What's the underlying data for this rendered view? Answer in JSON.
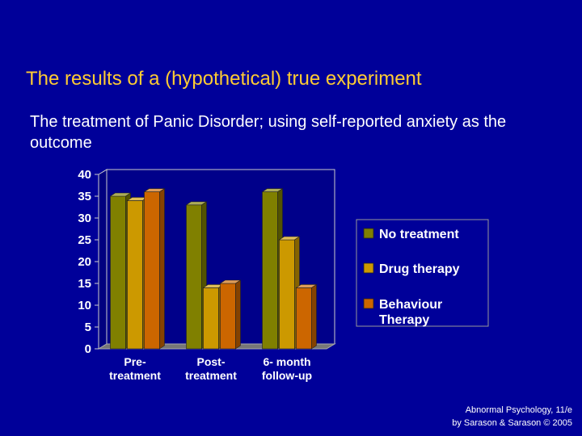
{
  "slide": {
    "title": "The results of a (hypothetical) true experiment",
    "subtitle": "The treatment of Panic Disorder; using self-reported anxiety as the outcome",
    "credit_line1": "Abnormal Psychology, 11/e",
    "credit_line2": "by Sarason & Sarason © 2005"
  },
  "chart_data": {
    "type": "bar",
    "title": "",
    "xlabel": "",
    "ylabel": "",
    "ylim": [
      0,
      40
    ],
    "yticks": [
      0,
      5,
      10,
      15,
      20,
      25,
      30,
      35,
      40
    ],
    "categories": [
      [
        "Pre-",
        "treatment"
      ],
      [
        "Post-",
        "treatment"
      ],
      [
        "6- month",
        "follow-up"
      ]
    ],
    "series": [
      {
        "name": "No treatment",
        "lines": [
          "No treatment"
        ],
        "color": "#808000",
        "values": [
          35,
          33,
          36
        ]
      },
      {
        "name": "Drug therapy",
        "lines": [
          "Drug therapy"
        ],
        "color": "#cc9900",
        "values": [
          34,
          14,
          25
        ]
      },
      {
        "name": "Behaviour Therapy",
        "lines": [
          "Behaviour",
          "Therapy"
        ],
        "color": "#cc6600",
        "values": [
          36,
          15,
          14
        ]
      }
    ],
    "legend": "right",
    "grid": false,
    "style": "3d-bars"
  }
}
